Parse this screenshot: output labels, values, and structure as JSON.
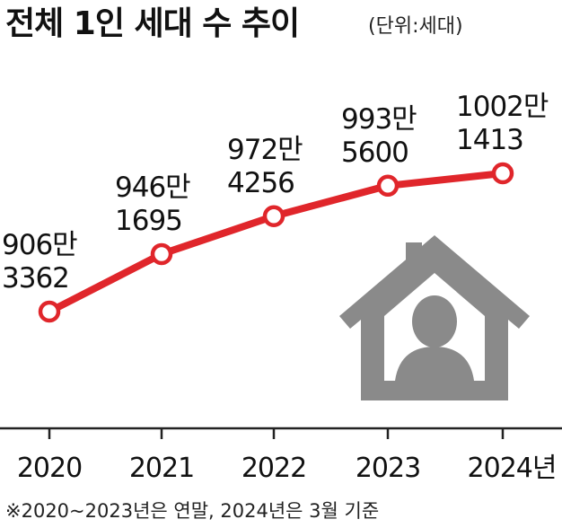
{
  "chart_data": {
    "type": "line",
    "title": "전체 1인 세대 수 추이",
    "unit_note": "(단위:세대)",
    "categories": [
      "2020",
      "2021",
      "2022",
      "2023",
      "2024년"
    ],
    "series": [
      {
        "values": [
          9063362,
          9461695,
          9724256,
          9935600,
          10021413
        ],
        "labels": [
          [
            "906만",
            "3362"
          ],
          [
            "946만",
            "1695"
          ],
          [
            "972만",
            "4256"
          ],
          [
            "993만",
            "5600"
          ],
          [
            "1002만",
            "1413"
          ]
        ],
        "color": "#e0262b"
      }
    ],
    "grid": false,
    "legend": "none",
    "footnote": "※2020~2023년은 연말, 2024년은 3월 기준"
  },
  "colors": {
    "line": "#e0262b",
    "axis": "#222222",
    "house_icon": "#8a8a8a"
  },
  "icons": [
    "house-person-icon"
  ]
}
